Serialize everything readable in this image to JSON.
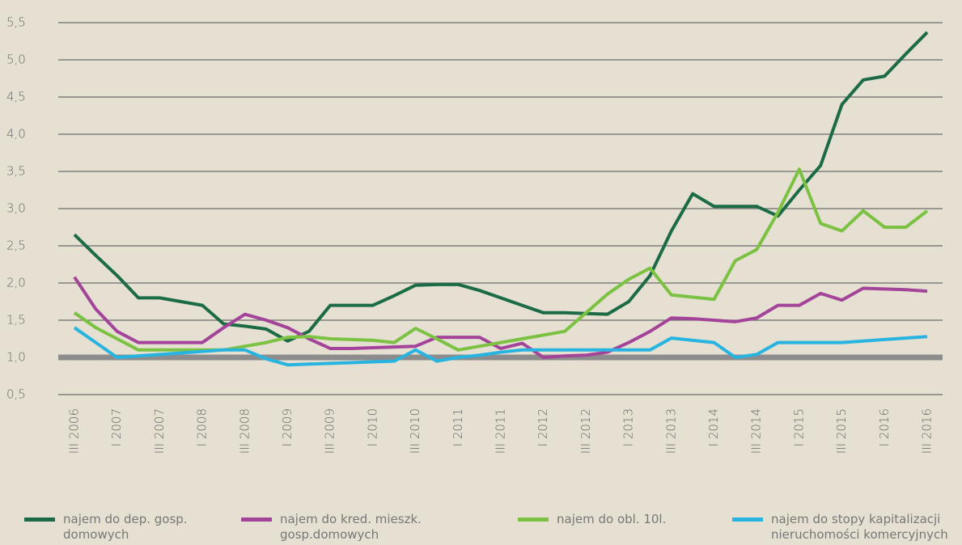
{
  "chart_data": {
    "type": "line",
    "categories": [
      "III 2006",
      null,
      "I 2007",
      null,
      "III 2007",
      null,
      "I 2008",
      null,
      "III 2008",
      null,
      "I 2009",
      null,
      "III 2009",
      null,
      "I 2010",
      null,
      "III 2010",
      null,
      "I 2011",
      null,
      "III 2011",
      null,
      "I 2012",
      null,
      "III 2012",
      null,
      "I 2013",
      null,
      "III 2013",
      null,
      "I 2014",
      null,
      "III 2014",
      null,
      "I 2015",
      null,
      "III 2015",
      null,
      "I 2016",
      null,
      "III 2016"
    ],
    "series": [
      {
        "name": "najem do dep. gosp. domowych",
        "color": "#1b6b46",
        "values": [
          2.65,
          2.37,
          2.1,
          1.8,
          1.8,
          1.75,
          1.7,
          1.45,
          1.42,
          1.38,
          1.22,
          1.35,
          1.7,
          1.7,
          1.7,
          1.83,
          1.97,
          1.98,
          1.98,
          1.9,
          1.8,
          1.7,
          1.6,
          1.6,
          1.59,
          1.58,
          1.75,
          2.1,
          2.7,
          3.2,
          3.03,
          3.03,
          3.03,
          2.9,
          3.25,
          3.58,
          4.4,
          4.73,
          4.78,
          5.08,
          5.37
        ]
      },
      {
        "name": "najem do kred. mieszk. gosp.domowych",
        "color": "#a3449a",
        "values": [
          2.08,
          1.65,
          1.35,
          1.2,
          1.2,
          1.2,
          1.2,
          1.4,
          1.58,
          1.5,
          1.4,
          1.25,
          1.12,
          1.12,
          1.13,
          1.14,
          1.15,
          1.27,
          1.27,
          1.27,
          1.12,
          1.19,
          1.0,
          1.02,
          1.03,
          1.07,
          1.2,
          1.35,
          1.53,
          1.52,
          1.5,
          1.48,
          1.53,
          1.7,
          1.7,
          1.86,
          1.77,
          1.93,
          1.92,
          1.91,
          1.89
        ]
      },
      {
        "name": "najem do obl. 10l.",
        "color": "#7cc242",
        "values": [
          1.6,
          1.4,
          1.25,
          1.1,
          1.1,
          1.1,
          1.1,
          1.1,
          1.15,
          1.2,
          1.27,
          1.28,
          1.25,
          1.24,
          1.23,
          1.2,
          1.39,
          1.25,
          1.1,
          1.15,
          1.2,
          1.25,
          1.3,
          1.35,
          1.6,
          1.85,
          2.05,
          2.2,
          1.84,
          1.81,
          1.78,
          2.3,
          2.45,
          2.95,
          3.53,
          2.8,
          2.7,
          2.97,
          2.75,
          2.75,
          2.97
        ]
      },
      {
        "name": "najem do stopy kapitalizacji nieruchomości komercyjnych",
        "color": "#27b4e0",
        "values": [
          1.4,
          1.2,
          1.0,
          1.02,
          1.04,
          1.06,
          1.08,
          1.1,
          1.1,
          0.98,
          0.9,
          0.91,
          0.92,
          0.93,
          0.94,
          0.95,
          1.1,
          0.95,
          1.0,
          1.03,
          1.07,
          1.1,
          1.1,
          1.1,
          1.1,
          1.1,
          1.1,
          1.1,
          1.26,
          1.23,
          1.2,
          1.0,
          1.04,
          1.2,
          1.2,
          1.2,
          1.2,
          1.22,
          1.24,
          1.26,
          1.28
        ]
      }
    ],
    "ylim": [
      0.5,
      5.5
    ],
    "yticks": [
      {
        "value": 0.5,
        "label": "0,5"
      },
      {
        "value": 1.0,
        "label": "1,0"
      },
      {
        "value": 1.5,
        "label": "1,5"
      },
      {
        "value": 2.0,
        "label": "2,0"
      },
      {
        "value": 2.5,
        "label": "2,5"
      },
      {
        "value": 3.0,
        "label": "3,0"
      },
      {
        "value": 3.5,
        "label": "3,5"
      },
      {
        "value": 4.0,
        "label": "4,0"
      },
      {
        "value": 4.5,
        "label": "4,5"
      },
      {
        "value": 5.0,
        "label": "5,0"
      },
      {
        "value": 5.5,
        "label": "5,5"
      }
    ],
    "hline": 1.0,
    "grid": true
  }
}
